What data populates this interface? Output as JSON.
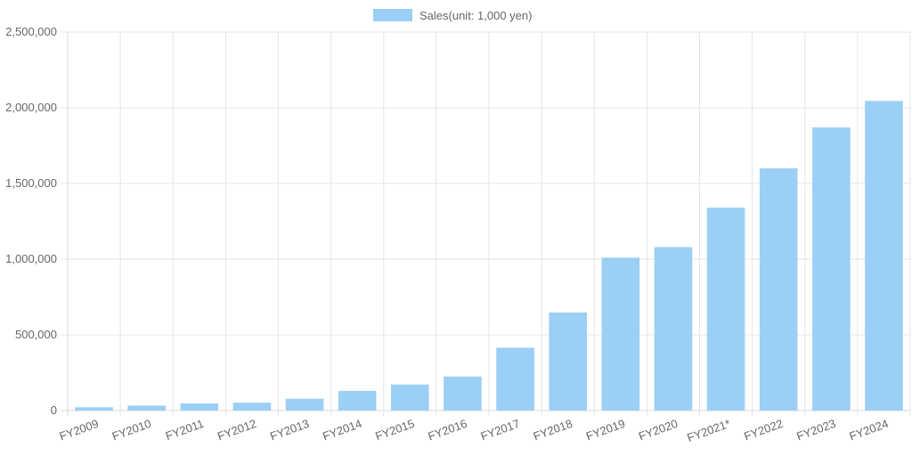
{
  "chart_data": {
    "type": "bar",
    "categories": [
      "FY2009",
      "FY2010",
      "FY2011",
      "FY2012",
      "FY2013",
      "FY2014",
      "FY2015",
      "FY2016",
      "FY2017",
      "FY2018",
      "FY2019",
      "FY2020",
      "FY2021*",
      "FY2022",
      "FY2023",
      "FY2024"
    ],
    "series": [
      {
        "name": "Sales(unit: 1,000 yen)",
        "values": [
          22000,
          33000,
          47000,
          52000,
          78000,
          130000,
          172000,
          225000,
          415000,
          648000,
          1010000,
          1080000,
          1340000,
          1600000,
          1870000,
          2045000
        ],
        "color": "#9ccff5"
      }
    ],
    "ylim": [
      0,
      2500000
    ],
    "yticks": [
      "0",
      "500,000",
      "1,000,000",
      "1,500,000",
      "2,000,000",
      "2,500,000"
    ],
    "ytick_values": [
      0,
      500000,
      1000000,
      1500000,
      2000000,
      2500000
    ],
    "grid": true,
    "legend_position": "top-center",
    "gridline_color": "#e5e5e5",
    "text_color": "#666666"
  }
}
